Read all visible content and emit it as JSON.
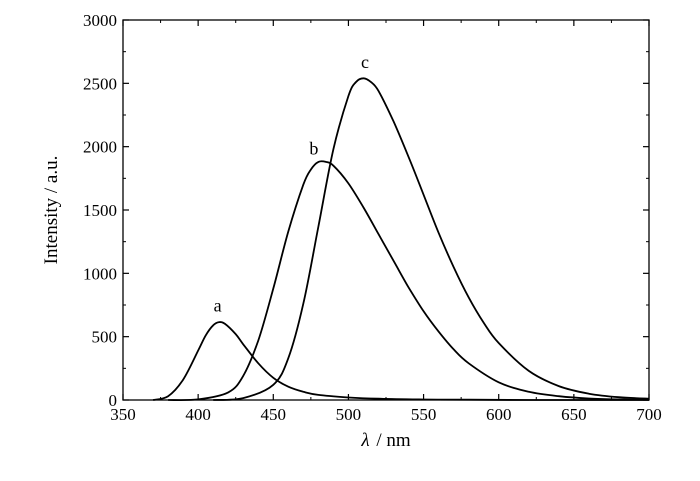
{
  "chart_data": {
    "type": "line",
    "xlabel_symbol": "λ",
    "xlabel_unit": "/ nm",
    "ylabel": "Intensity / a.u.",
    "xlim": [
      350,
      700
    ],
    "ylim": [
      0,
      3000
    ],
    "xticks": [
      350,
      400,
      450,
      500,
      550,
      600,
      650,
      700
    ],
    "yticks": [
      0,
      500,
      1000,
      1500,
      2000,
      2500,
      3000
    ],
    "grid": false,
    "line_color": "#000000",
    "series": [
      {
        "name": "a",
        "x": [
          370,
          380,
          390,
          400,
          405,
          410,
          414,
          418,
          425,
          430,
          440,
          450,
          460,
          470,
          480,
          500,
          520,
          550,
          580,
          620,
          660,
          700
        ],
        "y": [
          0,
          30,
          160,
          390,
          510,
          590,
          615,
          600,
          520,
          440,
          290,
          175,
          105,
          65,
          40,
          20,
          10,
          4,
          2,
          0,
          0,
          0
        ]
      },
      {
        "name": "b",
        "x": [
          380,
          400,
          420,
          430,
          440,
          450,
          460,
          470,
          475,
          480,
          485,
          490,
          500,
          510,
          520,
          530,
          540,
          550,
          560,
          570,
          580,
          600,
          620,
          640,
          660,
          680,
          700
        ],
        "y": [
          0,
          5,
          60,
          190,
          470,
          880,
          1330,
          1700,
          1820,
          1880,
          1880,
          1850,
          1710,
          1520,
          1310,
          1100,
          890,
          700,
          540,
          400,
          290,
          140,
          65,
          30,
          12,
          5,
          2
        ]
      },
      {
        "name": "c",
        "x": [
          410,
          430,
          450,
          460,
          470,
          480,
          490,
          500,
          505,
          510,
          515,
          520,
          530,
          540,
          550,
          560,
          570,
          580,
          590,
          600,
          620,
          640,
          660,
          680,
          700
        ],
        "y": [
          0,
          15,
          120,
          330,
          760,
          1370,
          1980,
          2400,
          2510,
          2540,
          2510,
          2440,
          2200,
          1920,
          1620,
          1320,
          1050,
          810,
          610,
          450,
          230,
          110,
          50,
          22,
          10
        ]
      }
    ],
    "annotations": [
      {
        "text": "a",
        "x": 413,
        "y": 700
      },
      {
        "text": "b",
        "x": 477,
        "y": 1940
      },
      {
        "text": "c",
        "x": 511,
        "y": 2620
      }
    ]
  }
}
